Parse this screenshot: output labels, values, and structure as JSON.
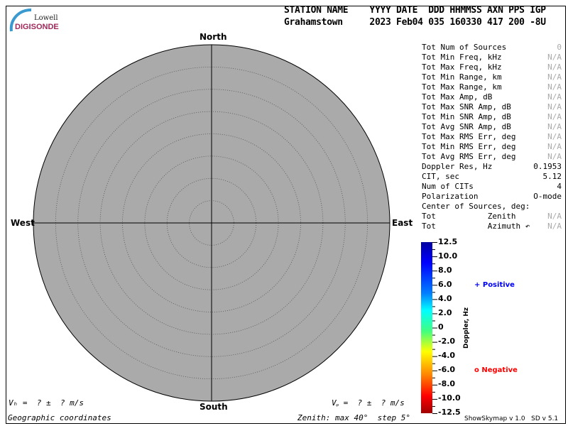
{
  "logo": {
    "line1": "Lowell",
    "line2": "DIGISONDE"
  },
  "header": {
    "labels": "STATION NAME    YYYY DATE  DDD HHMMSS AXN PPS IGP",
    "values": "Grahamstown     2023 Feb04 035 160330 417 200 -8U"
  },
  "skymap": {
    "north": "North",
    "south": "South",
    "east": "East",
    "west": "West",
    "background": "#aaaaaa",
    "zenith_max_deg": 40,
    "zenith_step_deg": 5
  },
  "stats": [
    {
      "label": "Tot Num of Sources",
      "value": "0",
      "na": true
    },
    {
      "label": "Tot Min Freq, kHz",
      "value": "N/A",
      "na": true
    },
    {
      "label": "Tot Max Freq, kHz",
      "value": "N/A",
      "na": true
    },
    {
      "label": "Tot Min Range, km",
      "value": "N/A",
      "na": true
    },
    {
      "label": "Tot Max Range, km",
      "value": "N/A",
      "na": true
    },
    {
      "label": "Tot Max Amp, dB",
      "value": "N/A",
      "na": true
    },
    {
      "label": "Tot Max SNR Amp, dB",
      "value": "N/A",
      "na": true
    },
    {
      "label": "Tot Min SNR Amp, dB",
      "value": "N/A",
      "na": true
    },
    {
      "label": "Tot Avg SNR Amp, dB",
      "value": "N/A",
      "na": true
    },
    {
      "label": "Tot Max RMS Err, deg",
      "value": "N/A",
      "na": true
    },
    {
      "label": "Tot Min RMS Err, deg",
      "value": "N/A",
      "na": true
    },
    {
      "label": "Tot Avg RMS Err, deg",
      "value": "N/A",
      "na": true
    },
    {
      "label": "Doppler Res, Hz",
      "value": "0.1953",
      "na": false
    },
    {
      "label": "CIT, sec",
      "value": "5.12",
      "na": false
    },
    {
      "label": "Num of CITs",
      "value": "4",
      "na": false
    },
    {
      "label": "Polarization",
      "value": "O-mode",
      "na": false
    },
    {
      "label": "Center of Sources, deg:",
      "value": "",
      "na": false
    },
    {
      "label": "Tot           Zenith",
      "value": "N/A",
      "na": true
    },
    {
      "label": "Tot           Azimuth ↶",
      "value": "N/A",
      "na": true
    }
  ],
  "colorbar": {
    "title": "Doppler, Hz",
    "ticks": [
      "12.5",
      "10.0",
      "8.0",
      "6.0",
      "4.0",
      "2.0",
      "0",
      "-2.0",
      "-4.0",
      "-6.0",
      "-8.0",
      "-10.0",
      "-12.5"
    ],
    "legend_positive": "+ Positive",
    "legend_negative": "o Negative",
    "positive_color": "#0000ff",
    "negative_color": "#ff0000"
  },
  "footer": {
    "vh": "Vₕ =  ? ±  ? m/s",
    "vz": "Vᵩ =  ? ±  ? m/s",
    "coords": "Geographic coordinates",
    "zenith": "Zenith: max 40°  step 5°",
    "version": "ShowSkymap v 1.0   SD v 5.1"
  }
}
